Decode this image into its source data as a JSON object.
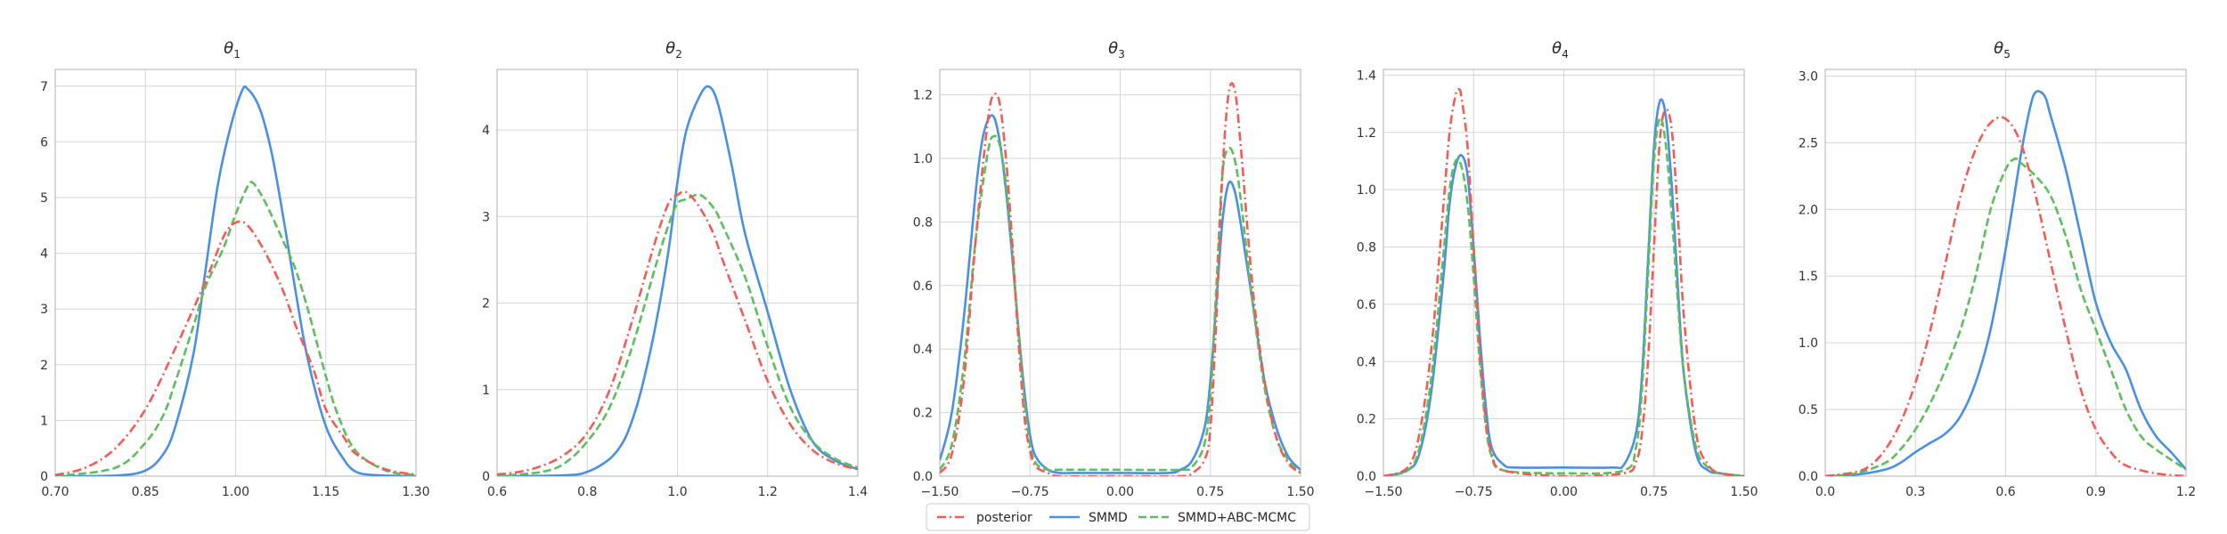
{
  "legend": {
    "placement": "bottom-center",
    "entries": [
      {
        "label": "posterior",
        "color": "#f25c54",
        "dash": "dash-dot"
      },
      {
        "label": "SMMD",
        "color": "#4a90e2",
        "dash": "solid"
      },
      {
        "label": "SMMD+ABC-MCMC",
        "color": "#5cbf5c",
        "dash": "dashed"
      }
    ]
  },
  "chart_data": [
    {
      "type": "line",
      "title_sym": "θ",
      "title_sub": "1",
      "grid": true,
      "xlim": [
        0.7,
        1.3
      ],
      "ylim": [
        0,
        7.3
      ],
      "xticks": [
        0.7,
        0.85,
        1.0,
        1.15,
        1.3
      ],
      "xtick_labels": [
        "0.70",
        "0.85",
        "1.00",
        "1.15",
        "1.30"
      ],
      "yticks": [
        0,
        1,
        2,
        3,
        4,
        5,
        6,
        7
      ],
      "ytick_labels": [
        "0",
        "1",
        "2",
        "3",
        "4",
        "5",
        "6",
        "7"
      ],
      "series": [
        {
          "name": "posterior",
          "color": "#f25c54",
          "dash": "dash-dot",
          "x": [
            0.7,
            0.75,
            0.8,
            0.85,
            0.9,
            0.95,
            0.98,
            1.0,
            1.02,
            1.05,
            1.08,
            1.1,
            1.13,
            1.15,
            1.18,
            1.2,
            1.25,
            1.3
          ],
          "y": [
            0.02,
            0.15,
            0.5,
            1.2,
            2.3,
            3.5,
            4.3,
            4.55,
            4.5,
            4.0,
            3.3,
            2.7,
            1.9,
            1.2,
            0.7,
            0.4,
            0.12,
            0.03
          ]
        },
        {
          "name": "SMMD",
          "color": "#4a90e2",
          "dash": "solid",
          "x": [
            0.7,
            0.8,
            0.85,
            0.88,
            0.9,
            0.93,
            0.95,
            0.97,
            0.99,
            1.01,
            1.02,
            1.04,
            1.06,
            1.08,
            1.1,
            1.12,
            1.15,
            1.18,
            1.2,
            1.23,
            1.3
          ],
          "y": [
            0.0,
            0.01,
            0.1,
            0.4,
            0.9,
            2.2,
            3.7,
            5.2,
            6.2,
            6.9,
            6.95,
            6.6,
            5.8,
            4.6,
            3.3,
            2.1,
            0.9,
            0.3,
            0.08,
            0.02,
            0.0
          ]
        },
        {
          "name": "SMMD+ABC-MCMC",
          "color": "#5cbf5c",
          "dash": "dashed",
          "x": [
            0.7,
            0.8,
            0.85,
            0.88,
            0.9,
            0.93,
            0.95,
            0.98,
            1.0,
            1.02,
            1.03,
            1.05,
            1.08,
            1.1,
            1.12,
            1.15,
            1.17,
            1.2,
            1.25,
            1.3
          ],
          "y": [
            0.0,
            0.15,
            0.6,
            1.1,
            1.7,
            2.7,
            3.4,
            4.1,
            4.7,
            5.2,
            5.25,
            4.9,
            4.2,
            3.7,
            3.0,
            1.8,
            1.1,
            0.45,
            0.1,
            0.02
          ]
        }
      ]
    },
    {
      "type": "line",
      "title_sym": "θ",
      "title_sub": "2",
      "grid": true,
      "xlim": [
        0.6,
        1.4
      ],
      "ylim": [
        0,
        4.7
      ],
      "xticks": [
        0.6,
        0.8,
        1.0,
        1.2,
        1.4
      ],
      "xtick_labels": [
        "0.6",
        "0.8",
        "1.0",
        "1.2",
        "1.4"
      ],
      "yticks": [
        0,
        1,
        2,
        3,
        4
      ],
      "ytick_labels": [
        "0",
        "1",
        "2",
        "3",
        "4"
      ],
      "series": [
        {
          "name": "posterior",
          "color": "#f25c54",
          "dash": "dash-dot",
          "x": [
            0.6,
            0.65,
            0.7,
            0.75,
            0.8,
            0.85,
            0.9,
            0.95,
            0.98,
            1.0,
            1.02,
            1.05,
            1.08,
            1.1,
            1.15,
            1.2,
            1.25,
            1.3,
            1.35,
            1.4
          ],
          "y": [
            0.02,
            0.05,
            0.12,
            0.25,
            0.5,
            1.0,
            1.8,
            2.7,
            3.15,
            3.25,
            3.28,
            3.1,
            2.8,
            2.5,
            1.8,
            1.1,
            0.6,
            0.3,
            0.15,
            0.08
          ]
        },
        {
          "name": "SMMD",
          "color": "#4a90e2",
          "dash": "solid",
          "x": [
            0.6,
            0.75,
            0.8,
            0.85,
            0.88,
            0.9,
            0.92,
            0.95,
            0.98,
            1.0,
            1.02,
            1.05,
            1.07,
            1.09,
            1.12,
            1.15,
            1.2,
            1.25,
            1.3,
            1.35,
            1.4
          ],
          "y": [
            0.0,
            0.01,
            0.05,
            0.2,
            0.4,
            0.65,
            1.0,
            1.7,
            2.6,
            3.4,
            4.0,
            4.4,
            4.5,
            4.3,
            3.6,
            2.8,
            1.9,
            1.0,
            0.4,
            0.18,
            0.08
          ]
        },
        {
          "name": "SMMD+ABC-MCMC",
          "color": "#5cbf5c",
          "dash": "dashed",
          "x": [
            0.6,
            0.7,
            0.75,
            0.8,
            0.85,
            0.9,
            0.95,
            0.98,
            1.0,
            1.02,
            1.05,
            1.08,
            1.1,
            1.15,
            1.2,
            1.25,
            1.3,
            1.35,
            1.4
          ],
          "y": [
            0.0,
            0.05,
            0.15,
            0.4,
            0.8,
            1.5,
            2.4,
            2.9,
            3.15,
            3.2,
            3.25,
            3.1,
            2.9,
            2.3,
            1.5,
            0.8,
            0.4,
            0.2,
            0.1
          ]
        }
      ]
    },
    {
      "type": "line",
      "title_sym": "θ",
      "title_sub": "3",
      "grid": true,
      "xlim": [
        -1.5,
        1.5
      ],
      "ylim": [
        0,
        1.28
      ],
      "xticks": [
        -1.5,
        -0.75,
        0.0,
        0.75,
        1.5
      ],
      "xtick_labels": [
        "−1.50",
        "−0.75",
        "0.00",
        "0.75",
        "1.50"
      ],
      "yticks": [
        0,
        0.2,
        0.4,
        0.6,
        0.8,
        1.0,
        1.2
      ],
      "ytick_labels": [
        "0.0",
        "0.2",
        "0.4",
        "0.6",
        "0.8",
        "1.0",
        "1.2"
      ],
      "series": [
        {
          "name": "posterior",
          "color": "#f25c54",
          "dash": "dash-dot",
          "x": [
            -1.5,
            -1.4,
            -1.3,
            -1.2,
            -1.1,
            -1.05,
            -1.0,
            -0.95,
            -0.9,
            -0.85,
            -0.8,
            -0.75,
            -0.7,
            -0.6,
            -0.5,
            0.0,
            0.5,
            0.6,
            0.7,
            0.75,
            0.8,
            0.85,
            0.9,
            0.95,
            1.0,
            1.1,
            1.2,
            1.3,
            1.4,
            1.5
          ],
          "y": [
            0.01,
            0.07,
            0.3,
            0.75,
            1.12,
            1.2,
            1.17,
            1.0,
            0.75,
            0.45,
            0.2,
            0.08,
            0.03,
            0.01,
            0.0,
            0.0,
            0.0,
            0.01,
            0.05,
            0.15,
            0.5,
            0.95,
            1.2,
            1.22,
            1.05,
            0.6,
            0.3,
            0.12,
            0.04,
            0.01
          ]
        },
        {
          "name": "SMMD",
          "color": "#4a90e2",
          "dash": "solid",
          "x": [
            -1.5,
            -1.4,
            -1.3,
            -1.2,
            -1.15,
            -1.1,
            -1.05,
            -1.0,
            -0.95,
            -0.9,
            -0.85,
            -0.8,
            -0.75,
            -0.7,
            -0.6,
            -0.5,
            -0.4,
            0.0,
            0.4,
            0.5,
            0.6,
            0.7,
            0.75,
            0.8,
            0.85,
            0.9,
            0.95,
            1.0,
            1.1,
            1.2,
            1.3,
            1.4,
            1.5
          ],
          "y": [
            0.05,
            0.2,
            0.5,
            0.9,
            1.05,
            1.12,
            1.13,
            1.05,
            0.9,
            0.7,
            0.48,
            0.28,
            0.13,
            0.06,
            0.02,
            0.01,
            0.01,
            0.01,
            0.01,
            0.02,
            0.05,
            0.15,
            0.3,
            0.55,
            0.8,
            0.92,
            0.9,
            0.8,
            0.55,
            0.3,
            0.15,
            0.06,
            0.02
          ]
        },
        {
          "name": "SMMD+ABC-MCMC",
          "color": "#5cbf5c",
          "dash": "dashed",
          "x": [
            -1.5,
            -1.4,
            -1.3,
            -1.2,
            -1.1,
            -1.05,
            -1.0,
            -0.95,
            -0.9,
            -0.85,
            -0.8,
            -0.75,
            -0.7,
            -0.6,
            -0.5,
            0.0,
            0.5,
            0.6,
            0.7,
            0.75,
            0.8,
            0.85,
            0.9,
            0.95,
            1.0,
            1.1,
            1.2,
            1.3,
            1.4,
            1.5
          ],
          "y": [
            0.02,
            0.1,
            0.35,
            0.75,
            1.02,
            1.07,
            1.04,
            0.92,
            0.72,
            0.48,
            0.25,
            0.1,
            0.04,
            0.02,
            0.02,
            0.02,
            0.02,
            0.03,
            0.1,
            0.25,
            0.6,
            0.95,
            1.03,
            1.0,
            0.88,
            0.55,
            0.28,
            0.12,
            0.05,
            0.01
          ]
        }
      ]
    },
    {
      "type": "line",
      "title_sym": "θ",
      "title_sub": "4",
      "grid": true,
      "xlim": [
        -1.5,
        1.5
      ],
      "ylim": [
        0,
        1.42
      ],
      "xticks": [
        -1.5,
        -0.75,
        0.0,
        0.75,
        1.5
      ],
      "xtick_labels": [
        "−1.50",
        "−0.75",
        "0.00",
        "0.75",
        "1.50"
      ],
      "yticks": [
        0,
        0.2,
        0.4,
        0.6,
        0.8,
        1.0,
        1.2,
        1.4
      ],
      "ytick_labels": [
        "0.0",
        "0.2",
        "0.4",
        "0.6",
        "0.8",
        "1.0",
        "1.2",
        "1.4"
      ],
      "series": [
        {
          "name": "posterior",
          "color": "#f25c54",
          "dash": "dash-dot",
          "x": [
            -1.5,
            -1.3,
            -1.2,
            -1.1,
            -1.0,
            -0.95,
            -0.9,
            -0.87,
            -0.85,
            -0.8,
            -0.75,
            -0.7,
            -0.65,
            -0.6,
            -0.5,
            0.0,
            0.5,
            0.6,
            0.65,
            0.7,
            0.75,
            0.8,
            0.85,
            0.9,
            0.95,
            1.0,
            1.1,
            1.2,
            1.3,
            1.5
          ],
          "y": [
            0.0,
            0.03,
            0.15,
            0.45,
            0.95,
            1.2,
            1.33,
            1.35,
            1.32,
            1.15,
            0.8,
            0.45,
            0.2,
            0.08,
            0.02,
            0.0,
            0.01,
            0.05,
            0.15,
            0.4,
            0.8,
            1.18,
            1.28,
            1.2,
            0.9,
            0.55,
            0.15,
            0.04,
            0.01,
            0.0
          ]
        },
        {
          "name": "SMMD",
          "color": "#4a90e2",
          "dash": "solid",
          "x": [
            -1.5,
            -1.3,
            -1.2,
            -1.1,
            -1.0,
            -0.95,
            -0.9,
            -0.85,
            -0.8,
            -0.75,
            -0.7,
            -0.65,
            -0.6,
            -0.5,
            -0.4,
            0.0,
            0.4,
            0.5,
            0.6,
            0.65,
            0.7,
            0.75,
            0.8,
            0.85,
            0.9,
            0.95,
            1.0,
            1.1,
            1.2,
            1.3,
            1.5
          ],
          "y": [
            0.0,
            0.02,
            0.08,
            0.3,
            0.7,
            0.95,
            1.08,
            1.12,
            1.05,
            0.8,
            0.5,
            0.25,
            0.1,
            0.04,
            0.03,
            0.03,
            0.03,
            0.04,
            0.15,
            0.35,
            0.75,
            1.15,
            1.31,
            1.25,
            1.0,
            0.65,
            0.35,
            0.08,
            0.02,
            0.01,
            0.0
          ]
        },
        {
          "name": "SMMD+ABC-MCMC",
          "color": "#5cbf5c",
          "dash": "dashed",
          "x": [
            -1.5,
            -1.3,
            -1.2,
            -1.1,
            -1.0,
            -0.95,
            -0.9,
            -0.85,
            -0.8,
            -0.75,
            -0.7,
            -0.65,
            -0.6,
            -0.5,
            0.0,
            0.5,
            0.6,
            0.65,
            0.7,
            0.75,
            0.8,
            0.85,
            0.9,
            0.95,
            1.0,
            1.1,
            1.2,
            1.3,
            1.5
          ],
          "y": [
            0.0,
            0.02,
            0.1,
            0.35,
            0.78,
            1.0,
            1.1,
            1.08,
            0.95,
            0.7,
            0.4,
            0.18,
            0.07,
            0.02,
            0.01,
            0.02,
            0.1,
            0.3,
            0.7,
            1.1,
            1.25,
            1.15,
            0.9,
            0.6,
            0.35,
            0.1,
            0.03,
            0.01,
            0.0
          ]
        }
      ]
    },
    {
      "type": "line",
      "title_sym": "θ",
      "title_sub": "5",
      "grid": true,
      "xlim": [
        0.0,
        1.2
      ],
      "ylim": [
        0,
        3.05
      ],
      "xticks": [
        0.0,
        0.3,
        0.6,
        0.9,
        1.2
      ],
      "xtick_labels": [
        "0.0",
        "0.3",
        "0.6",
        "0.9",
        "1.2"
      ],
      "yticks": [
        0,
        0.5,
        1.0,
        1.5,
        2.0,
        2.5,
        3.0
      ],
      "ytick_labels": [
        "0.0",
        "0.5",
        "1.0",
        "1.5",
        "2.0",
        "2.5",
        "3.0"
      ],
      "series": [
        {
          "name": "posterior",
          "color": "#f25c54",
          "dash": "dash-dot",
          "x": [
            0.0,
            0.1,
            0.15,
            0.2,
            0.25,
            0.3,
            0.35,
            0.4,
            0.45,
            0.5,
            0.55,
            0.6,
            0.65,
            0.7,
            0.75,
            0.8,
            0.85,
            0.9,
            0.95,
            1.0,
            1.1,
            1.2
          ],
          "y": [
            0.0,
            0.03,
            0.08,
            0.2,
            0.4,
            0.7,
            1.1,
            1.6,
            2.1,
            2.45,
            2.65,
            2.68,
            2.5,
            2.1,
            1.6,
            1.1,
            0.65,
            0.35,
            0.18,
            0.08,
            0.02,
            0.0
          ]
        },
        {
          "name": "SMMD",
          "color": "#4a90e2",
          "dash": "solid",
          "x": [
            0.0,
            0.1,
            0.2,
            0.25,
            0.3,
            0.35,
            0.4,
            0.45,
            0.5,
            0.55,
            0.6,
            0.65,
            0.68,
            0.7,
            0.73,
            0.75,
            0.8,
            0.85,
            0.9,
            0.95,
            1.0,
            1.05,
            1.1,
            1.15,
            1.2
          ],
          "y": [
            0.0,
            0.01,
            0.05,
            0.1,
            0.18,
            0.25,
            0.32,
            0.45,
            0.7,
            1.1,
            1.7,
            2.4,
            2.75,
            2.88,
            2.85,
            2.7,
            2.3,
            1.8,
            1.3,
            1.0,
            0.8,
            0.5,
            0.3,
            0.18,
            0.05
          ]
        },
        {
          "name": "SMMD+ABC-MCMC",
          "color": "#5cbf5c",
          "dash": "dashed",
          "x": [
            0.0,
            0.1,
            0.2,
            0.25,
            0.3,
            0.35,
            0.4,
            0.45,
            0.5,
            0.55,
            0.6,
            0.63,
            0.65,
            0.7,
            0.75,
            0.8,
            0.85,
            0.9,
            0.95,
            1.0,
            1.05,
            1.1,
            1.2
          ],
          "y": [
            0.0,
            0.02,
            0.1,
            0.2,
            0.35,
            0.55,
            0.8,
            1.1,
            1.5,
            2.0,
            2.3,
            2.38,
            2.35,
            2.25,
            2.1,
            1.8,
            1.4,
            1.1,
            0.8,
            0.5,
            0.3,
            0.2,
            0.05
          ]
        }
      ]
    }
  ]
}
